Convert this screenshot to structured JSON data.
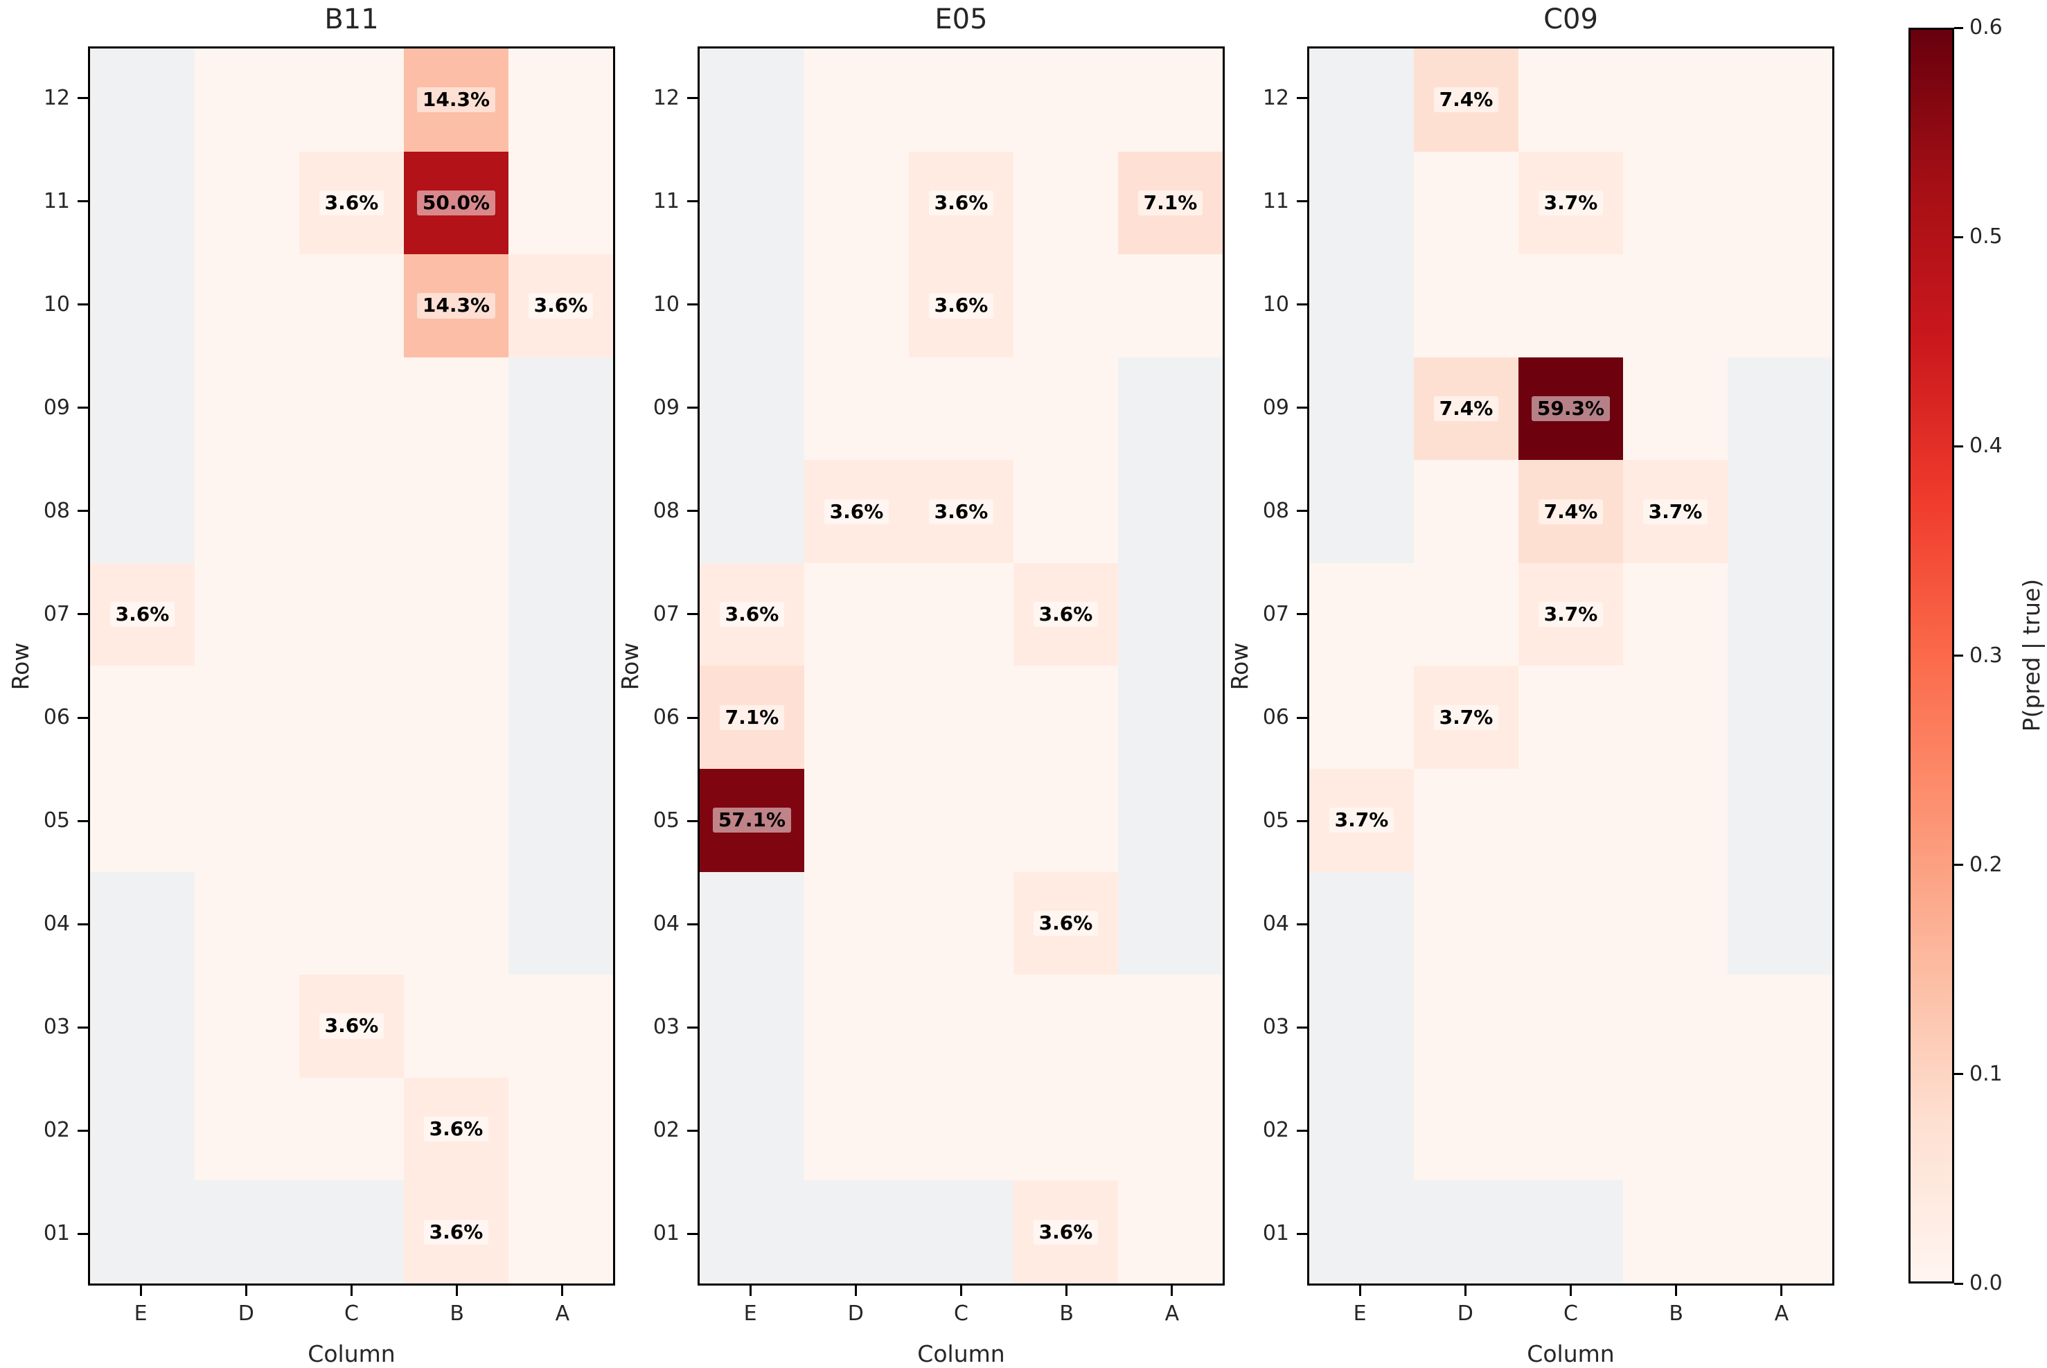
{
  "chart_data": {
    "type": "heatmap",
    "description": "Three per-class heatmaps of predicted well positions (percentage of predictions per Row/Column cell), sharing a Reds colorbar. null = no-data (gray) cell, 0 = zero-probability (near-white pink) cell.",
    "columns": [
      "E",
      "D",
      "C",
      "B",
      "A"
    ],
    "rows": [
      "12",
      "11",
      "10",
      "09",
      "08",
      "07",
      "06",
      "05",
      "04",
      "03",
      "02",
      "01"
    ],
    "xlabel": "Column",
    "ylabel": "Row",
    "colorbar": {
      "label": "P(pred | true)",
      "ticks": [
        "0.0",
        "0.1",
        "0.2",
        "0.3",
        "0.4",
        "0.5",
        "0.6"
      ],
      "vmin": 0.0,
      "vmax": 0.6,
      "cmap": "Reds"
    },
    "panels": [
      {
        "title": "B11",
        "values_pct": [
          [
            null,
            0,
            0,
            14.3,
            0
          ],
          [
            null,
            0,
            3.6,
            50.0,
            0
          ],
          [
            null,
            0,
            0,
            14.3,
            3.6
          ],
          [
            null,
            0,
            0,
            0,
            null
          ],
          [
            null,
            0,
            0,
            0,
            null
          ],
          [
            3.6,
            0,
            0,
            0,
            null
          ],
          [
            0,
            0,
            0,
            0,
            null
          ],
          [
            0,
            0,
            0,
            0,
            null
          ],
          [
            null,
            0,
            0,
            0,
            null
          ],
          [
            null,
            0,
            3.6,
            0,
            0
          ],
          [
            null,
            0,
            0,
            3.6,
            0
          ],
          [
            null,
            null,
            null,
            3.6,
            0
          ]
        ]
      },
      {
        "title": "E05",
        "values_pct": [
          [
            null,
            0,
            0,
            0,
            0
          ],
          [
            null,
            0,
            3.6,
            0,
            7.1
          ],
          [
            null,
            0,
            3.6,
            0,
            0
          ],
          [
            null,
            0,
            0,
            0,
            null
          ],
          [
            null,
            3.6,
            3.6,
            0,
            null
          ],
          [
            3.6,
            0,
            0,
            3.6,
            null
          ],
          [
            7.1,
            0,
            0,
            0,
            null
          ],
          [
            57.1,
            0,
            0,
            0,
            null
          ],
          [
            null,
            0,
            0,
            3.6,
            null
          ],
          [
            null,
            0,
            0,
            0,
            0
          ],
          [
            null,
            0,
            0,
            0,
            0
          ],
          [
            null,
            null,
            null,
            3.6,
            0
          ]
        ]
      },
      {
        "title": "C09",
        "values_pct": [
          [
            null,
            7.4,
            0,
            0,
            0
          ],
          [
            null,
            0,
            3.7,
            0,
            0
          ],
          [
            null,
            0,
            0,
            0,
            0
          ],
          [
            null,
            7.4,
            59.3,
            0,
            null
          ],
          [
            null,
            0,
            7.4,
            3.7,
            null
          ],
          [
            0,
            0,
            3.7,
            0,
            null
          ],
          [
            0,
            3.7,
            0,
            0,
            null
          ],
          [
            3.7,
            0,
            0,
            0,
            null
          ],
          [
            null,
            0,
            0,
            0,
            null
          ],
          [
            null,
            0,
            0,
            0,
            0
          ],
          [
            null,
            0,
            0,
            0,
            0
          ],
          [
            null,
            null,
            null,
            0,
            0
          ]
        ]
      }
    ],
    "colors": {
      "nan_cell": "#f0f1f2",
      "reds_stops": [
        "#fff5f0",
        "#fee0d2",
        "#fcbba1",
        "#fc9272",
        "#fb6a4a",
        "#ef3b2c",
        "#cb181d",
        "#a50f15",
        "#67000d"
      ],
      "annotation_text": "#000000",
      "axis_text": "#262626"
    }
  }
}
